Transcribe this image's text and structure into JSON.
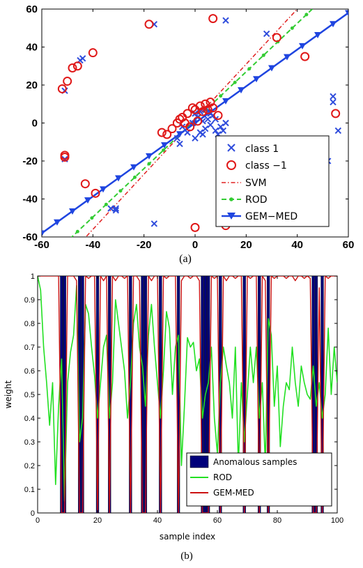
{
  "chart_data": [
    {
      "type": "scatter",
      "caption": "(a)",
      "xlim": [
        -60,
        60
      ],
      "ylim": [
        -60,
        60
      ],
      "xticks": [
        -60,
        -40,
        -20,
        0,
        20,
        40,
        60
      ],
      "yticks": [
        60,
        40,
        20,
        0,
        -20,
        -40,
        -60
      ],
      "grid": false,
      "legend_position": "bottom-right",
      "legend": [
        "class 1",
        "class −1",
        "SVM",
        "ROD",
        "GEM−MED"
      ],
      "colors": {
        "class1": "#2f4cdc",
        "class_neg1": "#e01818",
        "svm": "#e02020",
        "rod": "#33cc33",
        "gem_med": "#1f45e0"
      },
      "series": [
        {
          "name": "class 1",
          "marker": "x",
          "points": [
            [
              -16,
              52
            ],
            [
              12,
              54
            ],
            [
              28,
              47
            ],
            [
              -45,
              33
            ],
            [
              -44,
              34
            ],
            [
              -51,
              17
            ],
            [
              -51,
              -19
            ],
            [
              -31,
              -45
            ],
            [
              -33,
              -45
            ],
            [
              -31,
              -46
            ],
            [
              -16,
              -53
            ],
            [
              15,
              -53
            ],
            [
              54,
              14
            ],
            [
              54,
              11
            ],
            [
              56,
              -4
            ],
            [
              52,
              -20
            ],
            [
              -5,
              -2
            ],
            [
              -3,
              -5
            ],
            [
              0,
              -8
            ],
            [
              2,
              -5
            ],
            [
              4,
              -3
            ],
            [
              6,
              -1
            ],
            [
              8,
              -4
            ],
            [
              10,
              -2
            ],
            [
              12,
              0
            ],
            [
              3,
              1
            ],
            [
              5,
              2
            ],
            [
              7,
              4
            ],
            [
              1,
              3
            ],
            [
              -1,
              0
            ],
            [
              9,
              -6
            ],
            [
              -7,
              -8
            ],
            [
              -6,
              -11
            ],
            [
              3,
              -6
            ],
            [
              11,
              -4
            ],
            [
              6,
              5
            ],
            [
              4,
              7
            ],
            [
              2,
              6
            ],
            [
              0,
              5
            ],
            [
              8,
              2
            ]
          ]
        },
        {
          "name": "class −1",
          "marker": "o",
          "points": [
            [
              -18,
              52
            ],
            [
              7,
              55
            ],
            [
              32,
              45
            ],
            [
              43,
              35
            ],
            [
              -40,
              37
            ],
            [
              -46,
              30
            ],
            [
              -48,
              29
            ],
            [
              -50,
              22
            ],
            [
              -52,
              18
            ],
            [
              -51,
              -17
            ],
            [
              -51,
              -18
            ],
            [
              -43,
              -32
            ],
            [
              -39,
              -37
            ],
            [
              55,
              5
            ],
            [
              0,
              -55
            ],
            [
              12,
              -54
            ],
            [
              -5,
              3
            ],
            [
              -3,
              5
            ],
            [
              0,
              7
            ],
            [
              2,
              9
            ],
            [
              4,
              10
            ],
            [
              6,
              11
            ],
            [
              -7,
              0
            ],
            [
              -9,
              -3
            ],
            [
              -11,
              -6
            ],
            [
              -13,
              -5
            ],
            [
              1,
              1
            ],
            [
              3,
              6
            ],
            [
              5,
              7
            ],
            [
              -2,
              -2
            ],
            [
              -4,
              0
            ],
            [
              -6,
              2
            ],
            [
              7,
              8
            ],
            [
              9,
              4
            ],
            [
              -1,
              8
            ]
          ]
        },
        {
          "name": "SVM",
          "line": [
            [
              -60,
              -85
            ],
            [
              40,
              60
            ]
          ]
        },
        {
          "name": "ROD",
          "line": [
            [
              -60,
              -75
            ],
            [
              60,
              78
            ]
          ]
        },
        {
          "name": "GEM−MED",
          "line": [
            [
              -60,
              -58
            ],
            [
              60,
              58
            ]
          ]
        }
      ]
    },
    {
      "type": "bar",
      "caption": "(b)",
      "xlabel": "sample index",
      "ylabel": "weight",
      "xlim": [
        0,
        100
      ],
      "ylim": [
        0,
        1
      ],
      "xticks": [
        0,
        20,
        40,
        60,
        80,
        100
      ],
      "yticks": [
        "0",
        "0.1",
        "0.2",
        "0.3",
        "0.4",
        "0.5",
        "0.6",
        "0.7",
        "0.8",
        "0.9",
        "1"
      ],
      "grid": false,
      "legend_position": "bottom-right",
      "legend": [
        "Anomalous samples",
        "ROD",
        "GEM-MED"
      ],
      "colors": {
        "anomalous": "#00007a",
        "rod": "#22e022",
        "gem_med": "#cc1111"
      },
      "anomalous_indices": [
        8,
        9,
        14,
        15,
        20,
        24,
        31,
        35,
        36,
        41,
        47,
        55,
        56,
        57,
        61,
        69,
        74,
        77,
        92,
        93,
        95
      ],
      "rod_values": [
        1.0,
        0.94,
        0.7,
        0.55,
        0.37,
        0.55,
        0.12,
        0.45,
        0.65,
        0.05,
        0.55,
        0.68,
        0.75,
        0.96,
        0.3,
        0.4,
        0.88,
        0.84,
        0.7,
        0.58,
        0.4,
        0.55,
        0.7,
        0.75,
        0.4,
        0.55,
        0.9,
        0.8,
        0.7,
        0.6,
        0.4,
        0.55,
        0.8,
        0.88,
        0.7,
        0.62,
        0.45,
        0.75,
        0.88,
        0.7,
        0.55,
        0.4,
        0.6,
        0.85,
        0.78,
        0.5,
        0.7,
        0.75,
        0.2,
        0.45,
        0.74,
        0.7,
        0.72,
        0.6,
        0.65,
        0.4,
        0.5,
        0.55,
        0.7,
        0.4,
        0.25,
        0.55,
        0.7,
        0.62,
        0.55,
        0.4,
        0.7,
        0.2,
        0.55,
        0.3,
        0.5,
        0.7,
        0.55,
        0.7,
        0.4,
        0.55,
        0.2,
        0.82,
        0.75,
        0.45,
        0.62,
        0.28,
        0.45,
        0.55,
        0.52,
        0.7,
        0.55,
        0.45,
        0.62,
        0.55,
        0.5,
        0.48,
        0.62,
        0.45,
        0.55,
        0.4,
        0.5,
        0.78,
        0.5,
        0.7,
        0.55
      ],
      "gem_med_values": [
        1.0,
        1.0,
        1.0,
        1.0,
        1.0,
        1.0,
        1.0,
        1.0,
        0.0,
        0.0,
        1.0,
        1.0,
        1.0,
        0.98,
        0.0,
        0.0,
        1.0,
        0.99,
        1.0,
        1.0,
        0.0,
        1.0,
        0.98,
        1.0,
        0.0,
        1.0,
        0.98,
        1.0,
        1.0,
        0.99,
        1.0,
        0.0,
        1.0,
        1.0,
        0.98,
        0.0,
        0.0,
        1.0,
        0.98,
        1.0,
        1.0,
        0.0,
        1.0,
        0.99,
        1.0,
        1.0,
        1.0,
        0.0,
        0.98,
        1.0,
        1.0,
        0.99,
        1.0,
        1.0,
        0.98,
        0.0,
        0.0,
        0.0,
        1.0,
        0.99,
        1.0,
        0.0,
        1.0,
        0.98,
        1.0,
        1.0,
        0.99,
        1.0,
        1.0,
        0.0,
        1.0,
        0.99,
        1.0,
        1.0,
        0.0,
        1.0,
        0.98,
        0.0,
        1.0,
        0.99,
        1.0,
        1.0,
        1.0,
        0.99,
        1.0,
        1.0,
        0.98,
        1.0,
        1.0,
        0.99,
        1.0,
        0.99,
        0.0,
        0.0,
        0.95,
        0.0,
        1.0,
        0.99,
        1.0,
        1.0,
        1.0
      ]
    }
  ]
}
